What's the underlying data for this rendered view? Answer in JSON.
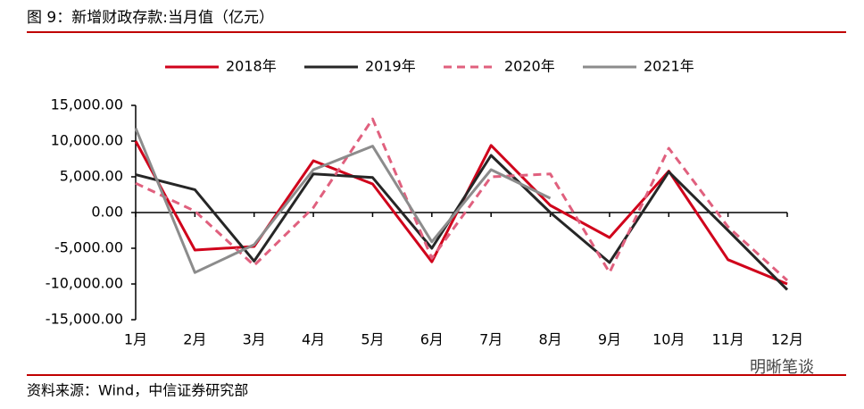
{
  "chart_data": {
    "type": "line",
    "title": "图 9：新增财政存款:当月值（亿元）",
    "source": "资料来源：Wind，中信证券研究部",
    "watermark": "明晰笔谈",
    "categories": [
      "1月",
      "2月",
      "3月",
      "4月",
      "5月",
      "6月",
      "7月",
      "8月",
      "9月",
      "10月",
      "11月",
      "12月"
    ],
    "series": [
      {
        "name": "2018年",
        "color": "#d0021b",
        "dash": false,
        "values": [
          10000,
          -5250,
          -4750,
          7250,
          4000,
          -6900,
          9400,
          1000,
          -3500,
          5800,
          -6600,
          -10000
        ]
      },
      {
        "name": "2019年",
        "color": "#262626",
        "dash": false,
        "values": [
          5300,
          3200,
          -6800,
          5400,
          4900,
          -5000,
          8000,
          0,
          -7000,
          5700,
          -2500,
          -10800
        ]
      },
      {
        "name": "2020年",
        "color": "#e0607e",
        "dash": true,
        "values": [
          4100,
          200,
          -7400,
          700,
          13100,
          -6400,
          5000,
          5400,
          -8400,
          9000,
          -2000,
          -9500
        ]
      },
      {
        "name": "2021年",
        "color": "#8c8c8c",
        "dash": false,
        "values": [
          11800,
          -8400,
          -4500,
          6000,
          9300,
          -4100,
          6000,
          2000,
          null,
          null,
          null,
          null
        ]
      }
    ],
    "ylim": [
      -15000,
      15000
    ],
    "yticks": [
      {
        "value": -15000,
        "label": "-15,000.00"
      },
      {
        "value": -10000,
        "label": "-10,000.00"
      },
      {
        "value": -5000,
        "label": "-5,000.00"
      },
      {
        "value": 0,
        "label": "0.00"
      },
      {
        "value": 5000,
        "label": "5,000.00"
      },
      {
        "value": 10000,
        "label": "10,000.00"
      },
      {
        "value": 15000,
        "label": "15,000.00"
      }
    ],
    "legend": "top"
  }
}
